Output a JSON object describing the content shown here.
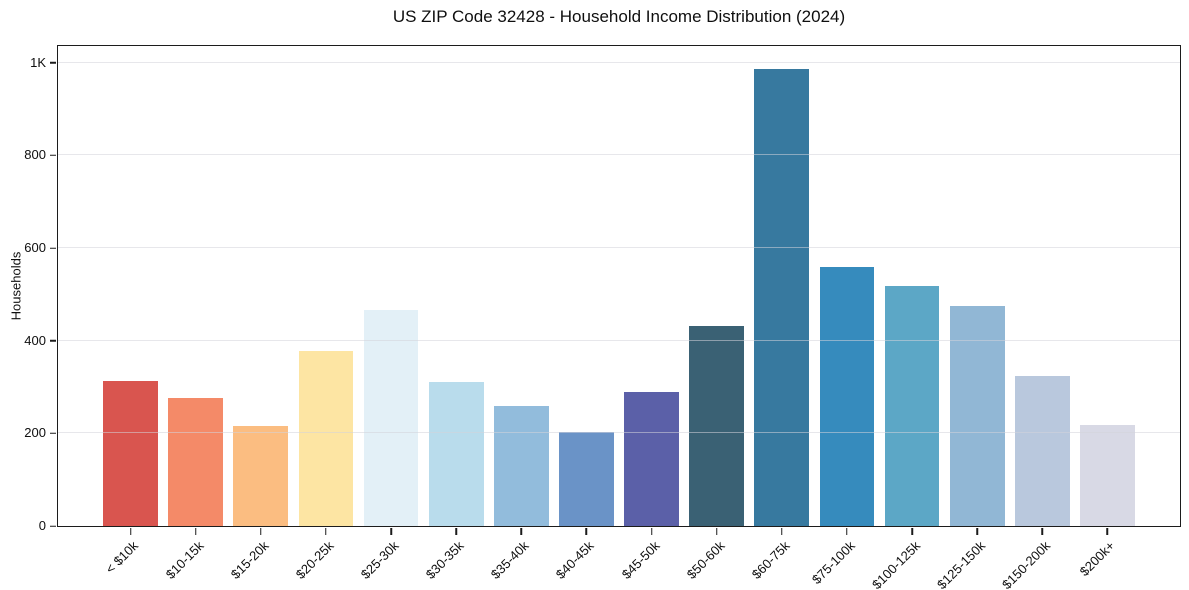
{
  "chart_data": {
    "type": "bar",
    "title": "US ZIP Code 32428 - Household Income Distribution (2024)",
    "xlabel": "",
    "ylabel": "Households",
    "categories": [
      "< $10k",
      "$10-15k",
      "$15-20k",
      "$20-25k",
      "$25-30k",
      "$30-35k",
      "$35-40k",
      "$40-45k",
      "$45-50k",
      "$50-60k",
      "$60-75k",
      "$75-100k",
      "$100-125k",
      "$125-150k",
      "$150-200k",
      "$200k+"
    ],
    "values": [
      312,
      277,
      215,
      377,
      466,
      310,
      260,
      202,
      290,
      432,
      986,
      560,
      517,
      475,
      323,
      217
    ],
    "bar_colors": [
      "#d9554f",
      "#f48a68",
      "#fbbd81",
      "#fde5a3",
      "#e3f0f7",
      "#b9dcec",
      "#92bcdc",
      "#6a93c7",
      "#5b60a8",
      "#3a6174",
      "#37799f",
      "#368bbd",
      "#5ca7c6",
      "#91b7d5",
      "#b9c8dd",
      "#d8d9e5"
    ],
    "ylim": [
      0,
      1036
    ],
    "yticks": [
      {
        "value": 0,
        "label": "0"
      },
      {
        "value": 200,
        "label": "200"
      },
      {
        "value": 400,
        "label": "400"
      },
      {
        "value": 600,
        "label": "600"
      },
      {
        "value": 800,
        "label": "800"
      },
      {
        "value": 1000,
        "label": "1K"
      }
    ],
    "grid": "horizontal",
    "legend": "none",
    "axis_colors": {
      "spine": "#1c1c1c",
      "grid": "#d3d3da",
      "text": "#0f0f0f",
      "background": "#ffffff"
    }
  }
}
